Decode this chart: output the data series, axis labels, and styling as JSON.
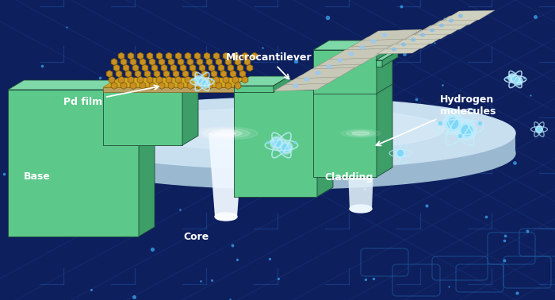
{
  "bg_color": "#0d1f5c",
  "green_front": "#5cc98a",
  "green_side": "#3d9e68",
  "green_top": "#7ed8a8",
  "gold_color": "#d4a820",
  "gold_dark": "#a07810",
  "gold_light": "#e8c840",
  "fiber_color": "#d0e8f8",
  "fiber_glow": "#e8f4ff",
  "disk_color": "#c8dff0",
  "disk_side": "#9ab8d0",
  "atom_blue": "#80d8f8",
  "atom_light": "#b0ecff",
  "atom_glow": "#d0f4ff",
  "orbit_color": "#c0eeff",
  "circuit_line": "#1a3880",
  "circuit_dot": "#2060b0",
  "label_color": "#ffffff",
  "labels": {
    "base": "Base",
    "pd_film": "Pd film",
    "microcantilever": "Microcantilever",
    "core": "Core",
    "cladding": "Cladding",
    "hydrogen": "Hydrogen\nmolecules"
  }
}
